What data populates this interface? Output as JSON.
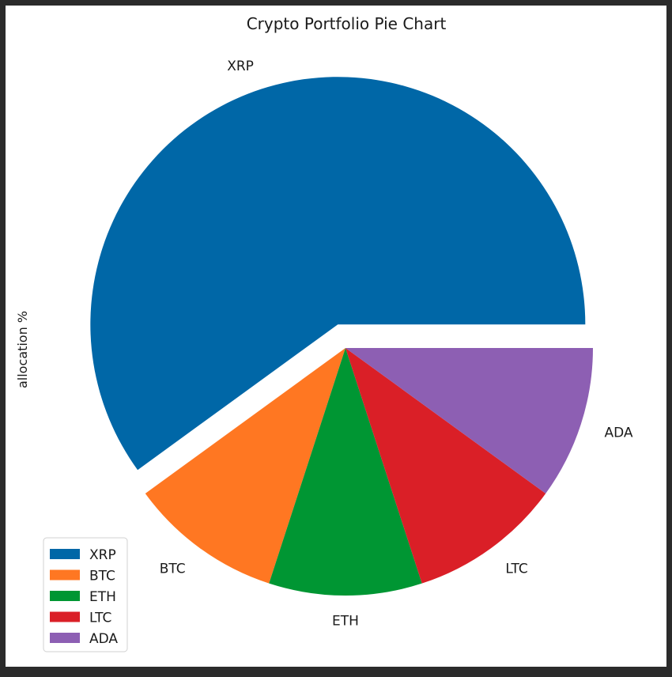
{
  "chart_data": {
    "type": "pie",
    "title": "Crypto Portfolio Pie Chart",
    "ylabel": "allocation %",
    "xlabel": "",
    "start_angle_deg": 0,
    "direction": "counterclockwise",
    "legend_position": "lower-left",
    "slices": [
      {
        "label": "XRP",
        "value": 60,
        "color": "#0067a7",
        "explode": 0.1
      },
      {
        "label": "BTC",
        "value": 10,
        "color": "#ff7722",
        "explode": 0
      },
      {
        "label": "ETH",
        "value": 10,
        "color": "#009633",
        "explode": 0
      },
      {
        "label": "LTC",
        "value": 10,
        "color": "#da1f27",
        "explode": 0
      },
      {
        "label": "ADA",
        "value": 10,
        "color": "#8d5fb3",
        "explode": 0
      }
    ],
    "legend": [
      "XRP",
      "BTC",
      "ETH",
      "LTC",
      "ADA"
    ]
  }
}
